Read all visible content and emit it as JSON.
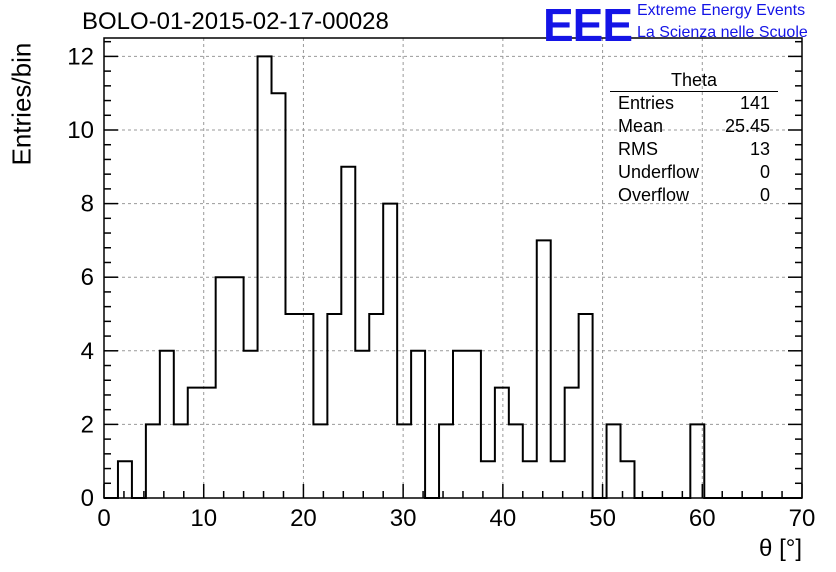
{
  "header": {
    "title": "BOLO-01-2015-02-17-00028",
    "logo_text": "EEE",
    "logo_line1": "Extreme Energy Events",
    "logo_line2": "La Scienza nelle Scuole",
    "logo_color": "#1414e6"
  },
  "stats_box": {
    "name": "Theta",
    "rows": [
      {
        "label": "Entries",
        "value": "141"
      },
      {
        "label": "Mean",
        "value": "25.45"
      },
      {
        "label": "RMS",
        "value": "13"
      },
      {
        "label": "Underflow",
        "value": "0"
      },
      {
        "label": "Overflow",
        "value": "0"
      }
    ]
  },
  "chart_data": {
    "type": "histogram",
    "xlabel": "θ [°]",
    "ylabel": "Entries/bin",
    "xlim": [
      0,
      70
    ],
    "ylim": [
      0,
      12.5
    ],
    "bin_width": 1.4,
    "bin_start": 0,
    "x_ticks": [
      0,
      10,
      20,
      30,
      40,
      50,
      60,
      70
    ],
    "y_ticks": [
      0,
      2,
      4,
      6,
      8,
      10,
      12
    ],
    "grid": true,
    "values": [
      0,
      1,
      0,
      2,
      4,
      2,
      3,
      3,
      6,
      6,
      4,
      12,
      11,
      5,
      5,
      2,
      5,
      9,
      4,
      5,
      8,
      2,
      4,
      0,
      2,
      4,
      4,
      1,
      3,
      2,
      1,
      7,
      1,
      3,
      5,
      0,
      2,
      1,
      0,
      0,
      0,
      0,
      2,
      0,
      0,
      0,
      0,
      0,
      0,
      0
    ]
  }
}
